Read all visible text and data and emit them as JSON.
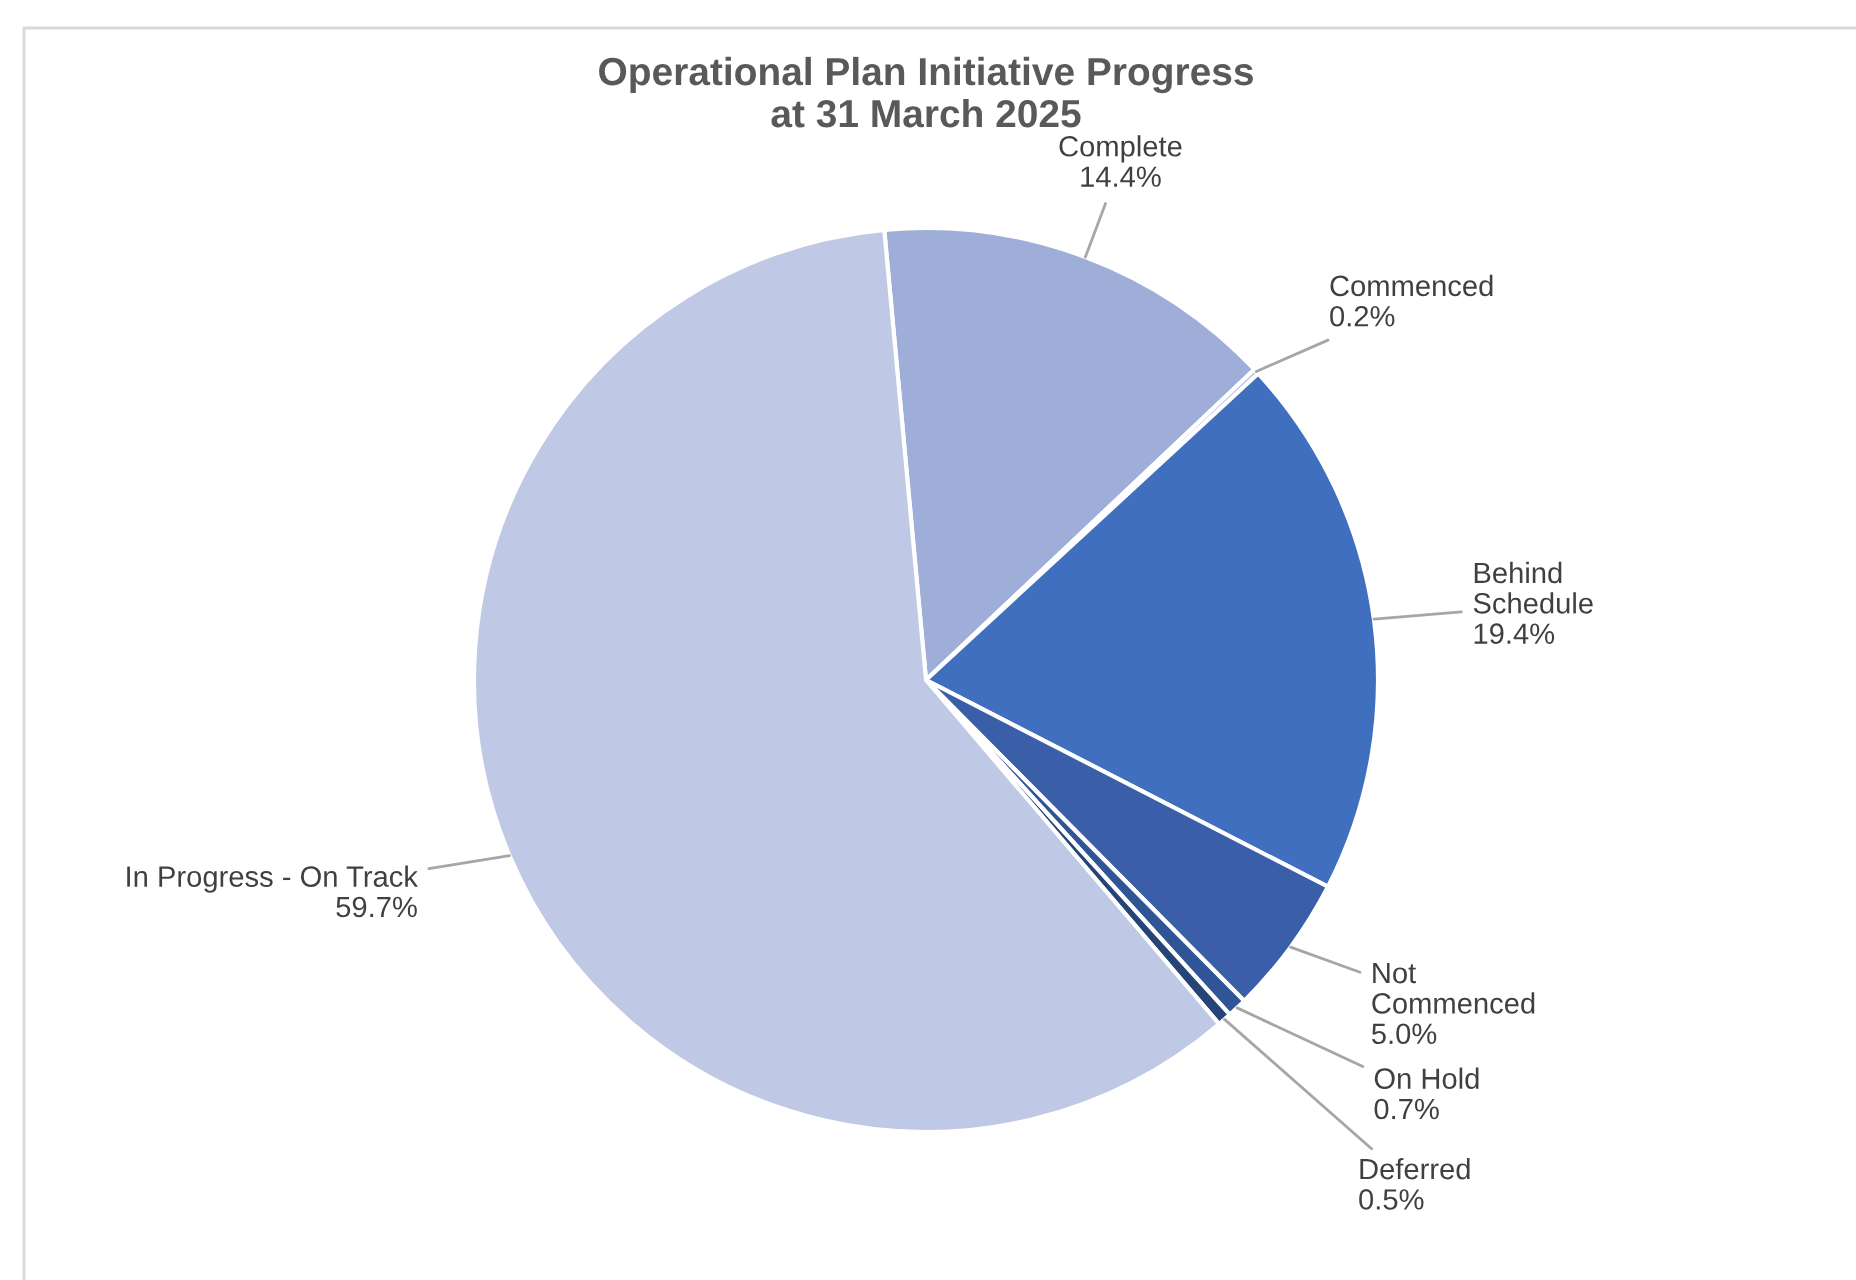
{
  "chart_data": {
    "type": "pie",
    "title": "Operational Plan Initiative Progress\nat 31 March 2025",
    "categories": [
      "Complete",
      "Commenced",
      "Behind\nSchedule",
      "Not\nCommenced",
      "On Hold",
      "Deferred",
      "In Progress - On Track"
    ],
    "values": [
      14.4,
      0.2,
      19.4,
      5.0,
      0.7,
      0.5,
      59.7
    ],
    "colors": [
      "#9faed8",
      "#a9b7dd",
      "#3f6fbe",
      "#3a5fa8",
      "#2f5597",
      "#264478",
      "#bfc8e4"
    ],
    "value_labels": [
      "14.4%",
      "0.2%",
      "19.4%",
      "5.0%",
      "0.7%",
      "0.5%",
      "59.7%"
    ]
  }
}
